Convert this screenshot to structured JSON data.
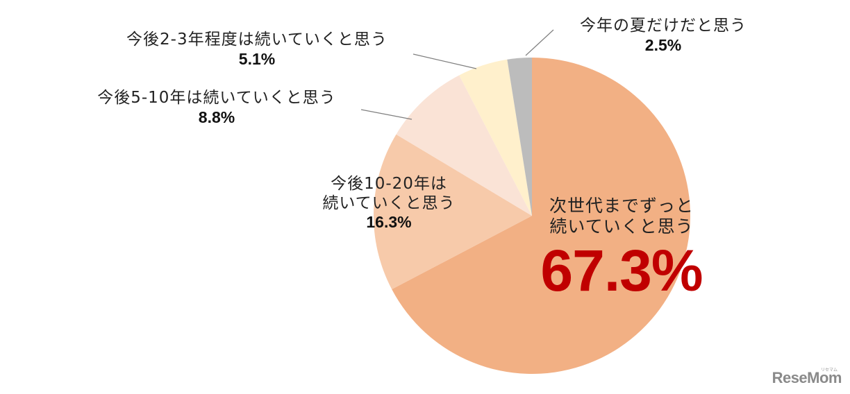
{
  "chart_data": {
    "type": "pie",
    "title": "",
    "start_angle_deg": 0,
    "direction": "clockwise",
    "center": [
      766,
      311
    ],
    "radius": 228,
    "slices": [
      {
        "label": "次世代までずっと続いていくと思う",
        "value": 67.3,
        "color": "#f2b084"
      },
      {
        "label": "今後10-20年は続いていくと思う",
        "value": 16.3,
        "color": "#f7caaa"
      },
      {
        "label": "今後5-10年は続いていくと思う",
        "value": 8.8,
        "color": "#fae3d6"
      },
      {
        "label": "今後2-3年程度は続いていくと思う",
        "value": 5.1,
        "color": "#fff0cc"
      },
      {
        "label": "今年の夏だけだと思う",
        "value": 2.5,
        "color": "#bcbcbc"
      }
    ]
  },
  "labels": {
    "main": {
      "line1": "次世代までずっと",
      "line2": "続いていくと思う",
      "pct": "67.3%"
    },
    "y10_20": {
      "line1": "今後10-20年は",
      "line2": "続いていくと思う",
      "pct": "16.3%"
    },
    "y5_10": {
      "name": "今後5-10年は続いていくと思う",
      "pct": "8.8%"
    },
    "y2_3": {
      "name": "今後2-3年程度は続いていくと思う",
      "pct": "5.1%"
    },
    "summer": {
      "name": "今年の夏だけだと思う",
      "pct": "2.5%"
    }
  },
  "colors": {
    "highlight": "#c00000",
    "leader_line": "#7f7f7f"
  },
  "logo": {
    "text": "ReseMom",
    "sub": "リセマム"
  }
}
